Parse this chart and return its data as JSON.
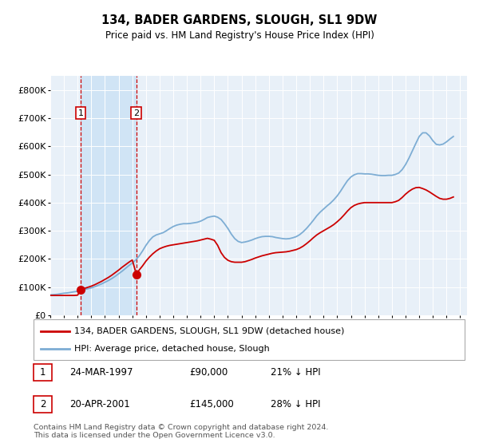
{
  "title": "134, BADER GARDENS, SLOUGH, SL1 9DW",
  "subtitle": "Price paid vs. HM Land Registry's House Price Index (HPI)",
  "legend_line1": "134, BADER GARDENS, SLOUGH, SL1 9DW (detached house)",
  "legend_line2": "HPI: Average price, detached house, Slough",
  "footer": "Contains HM Land Registry data © Crown copyright and database right 2024.\nThis data is licensed under the Open Government Licence v3.0.",
  "table_rows": [
    {
      "num": "1",
      "date": "24-MAR-1997",
      "price": "£90,000",
      "hpi": "21% ↓ HPI"
    },
    {
      "num": "2",
      "date": "20-APR-2001",
      "price": "£145,000",
      "hpi": "28% ↓ HPI"
    }
  ],
  "sale1_year": 1997.22,
  "sale1_price": 90000,
  "sale2_year": 2001.3,
  "sale2_price": 145000,
  "hpi_color": "#7dadd4",
  "price_color": "#cc0000",
  "vline_color": "#cc0000",
  "shade_color": "#d0e4f5",
  "bg_color": "#ffffff",
  "plot_bg": "#e8f0f8",
  "xmin": 1995,
  "xmax": 2025.5,
  "ymin": 0,
  "ymax": 850000,
  "yticks": [
    0,
    100000,
    200000,
    300000,
    400000,
    500000,
    600000,
    700000,
    800000
  ],
  "ytick_labels": [
    "£0",
    "£100K",
    "£200K",
    "£300K",
    "£400K",
    "£500K",
    "£600K",
    "£700K",
    "£800K"
  ],
  "hpi_data_years": [
    1995.0,
    1995.25,
    1995.5,
    1995.75,
    1996.0,
    1996.25,
    1996.5,
    1996.75,
    1997.0,
    1997.25,
    1997.5,
    1997.75,
    1998.0,
    1998.25,
    1998.5,
    1998.75,
    1999.0,
    1999.25,
    1999.5,
    1999.75,
    2000.0,
    2000.25,
    2000.5,
    2000.75,
    2001.0,
    2001.25,
    2001.5,
    2001.75,
    2002.0,
    2002.25,
    2002.5,
    2002.75,
    2003.0,
    2003.25,
    2003.5,
    2003.75,
    2004.0,
    2004.25,
    2004.5,
    2004.75,
    2005.0,
    2005.25,
    2005.5,
    2005.75,
    2006.0,
    2006.25,
    2006.5,
    2006.75,
    2007.0,
    2007.25,
    2007.5,
    2007.75,
    2008.0,
    2008.25,
    2008.5,
    2008.75,
    2009.0,
    2009.25,
    2009.5,
    2009.75,
    2010.0,
    2010.25,
    2010.5,
    2010.75,
    2011.0,
    2011.25,
    2011.5,
    2011.75,
    2012.0,
    2012.25,
    2012.5,
    2012.75,
    2013.0,
    2013.25,
    2013.5,
    2013.75,
    2014.0,
    2014.25,
    2014.5,
    2014.75,
    2015.0,
    2015.25,
    2015.5,
    2015.75,
    2016.0,
    2016.25,
    2016.5,
    2016.75,
    2017.0,
    2017.25,
    2017.5,
    2017.75,
    2018.0,
    2018.25,
    2018.5,
    2018.75,
    2019.0,
    2019.25,
    2019.5,
    2019.75,
    2020.0,
    2020.25,
    2020.5,
    2020.75,
    2021.0,
    2021.25,
    2021.5,
    2021.75,
    2022.0,
    2022.25,
    2022.5,
    2022.75,
    2023.0,
    2023.25,
    2023.5,
    2023.75,
    2024.0,
    2024.25,
    2024.5
  ],
  "hpi_data_values": [
    72000,
    73000,
    74000,
    76000,
    78000,
    79000,
    81000,
    83000,
    85000,
    88000,
    91000,
    94000,
    97000,
    101000,
    106000,
    111000,
    117000,
    123000,
    130000,
    138000,
    147000,
    156000,
    166000,
    176000,
    185000,
    196000,
    210000,
    228000,
    248000,
    265000,
    278000,
    285000,
    289000,
    293000,
    300000,
    308000,
    315000,
    320000,
    323000,
    325000,
    325000,
    326000,
    328000,
    330000,
    334000,
    340000,
    347000,
    350000,
    352000,
    348000,
    340000,
    325000,
    308000,
    288000,
    272000,
    262000,
    258000,
    260000,
    263000,
    267000,
    272000,
    276000,
    279000,
    280000,
    280000,
    279000,
    276000,
    274000,
    272000,
    271000,
    272000,
    275000,
    279000,
    286000,
    296000,
    308000,
    322000,
    337000,
    353000,
    366000,
    377000,
    388000,
    398000,
    410000,
    424000,
    441000,
    460000,
    478000,
    491000,
    499000,
    503000,
    503000,
    502000,
    502000,
    501000,
    499000,
    497000,
    496000,
    496000,
    497000,
    497000,
    500000,
    505000,
    517000,
    535000,
    558000,
    584000,
    610000,
    635000,
    648000,
    648000,
    637000,
    620000,
    607000,
    605000,
    608000,
    616000,
    626000,
    635000
  ],
  "price_data_years": [
    1995.0,
    1995.25,
    1995.5,
    1995.75,
    1996.0,
    1996.25,
    1996.5,
    1996.75,
    1997.0,
    1997.22,
    1997.5,
    1997.75,
    1998.0,
    1998.25,
    1998.5,
    1998.75,
    1999.0,
    1999.25,
    1999.5,
    1999.75,
    2000.0,
    2000.25,
    2000.5,
    2000.75,
    2001.0,
    2001.3,
    2001.5,
    2001.75,
    2002.0,
    2002.25,
    2002.5,
    2002.75,
    2003.0,
    2003.25,
    2003.5,
    2003.75,
    2004.0,
    2004.25,
    2004.5,
    2004.75,
    2005.0,
    2005.25,
    2005.5,
    2005.75,
    2006.0,
    2006.25,
    2006.5,
    2006.75,
    2007.0,
    2007.25,
    2007.5,
    2007.75,
    2008.0,
    2008.25,
    2008.5,
    2008.75,
    2009.0,
    2009.25,
    2009.5,
    2009.75,
    2010.0,
    2010.25,
    2010.5,
    2010.75,
    2011.0,
    2011.25,
    2011.5,
    2011.75,
    2012.0,
    2012.25,
    2012.5,
    2012.75,
    2013.0,
    2013.25,
    2013.5,
    2013.75,
    2014.0,
    2014.25,
    2014.5,
    2014.75,
    2015.0,
    2015.25,
    2015.5,
    2015.75,
    2016.0,
    2016.25,
    2016.5,
    2016.75,
    2017.0,
    2017.25,
    2017.5,
    2017.75,
    2018.0,
    2018.25,
    2018.5,
    2018.75,
    2019.0,
    2019.25,
    2019.5,
    2019.75,
    2020.0,
    2020.25,
    2020.5,
    2020.75,
    2021.0,
    2021.25,
    2021.5,
    2021.75,
    2022.0,
    2022.25,
    2022.5,
    2022.75,
    2023.0,
    2023.25,
    2023.5,
    2023.75,
    2024.0,
    2024.25,
    2024.5
  ],
  "price_data_values": [
    70000,
    70000,
    70000,
    70000,
    70000,
    70000,
    70000,
    70000,
    71000,
    90000,
    95000,
    99000,
    103000,
    108000,
    114000,
    120000,
    127000,
    134000,
    142000,
    151000,
    160000,
    170000,
    179000,
    188000,
    196000,
    145000,
    160000,
    175000,
    192000,
    206000,
    218000,
    228000,
    236000,
    241000,
    245000,
    248000,
    250000,
    252000,
    254000,
    256000,
    258000,
    260000,
    262000,
    264000,
    267000,
    270000,
    273000,
    270000,
    266000,
    248000,
    222000,
    205000,
    195000,
    190000,
    188000,
    188000,
    188000,
    190000,
    194000,
    198000,
    203000,
    207000,
    211000,
    214000,
    217000,
    220000,
    222000,
    223000,
    224000,
    225000,
    227000,
    230000,
    233000,
    238000,
    245000,
    254000,
    264000,
    275000,
    285000,
    293000,
    300000,
    307000,
    314000,
    322000,
    332000,
    343000,
    356000,
    370000,
    382000,
    390000,
    395000,
    398000,
    400000,
    400000,
    400000,
    400000,
    400000,
    400000,
    400000,
    400000,
    400000,
    403000,
    408000,
    418000,
    430000,
    440000,
    448000,
    453000,
    454000,
    450000,
    445000,
    438000,
    430000,
    422000,
    415000,
    412000,
    412000,
    415000,
    420000
  ]
}
